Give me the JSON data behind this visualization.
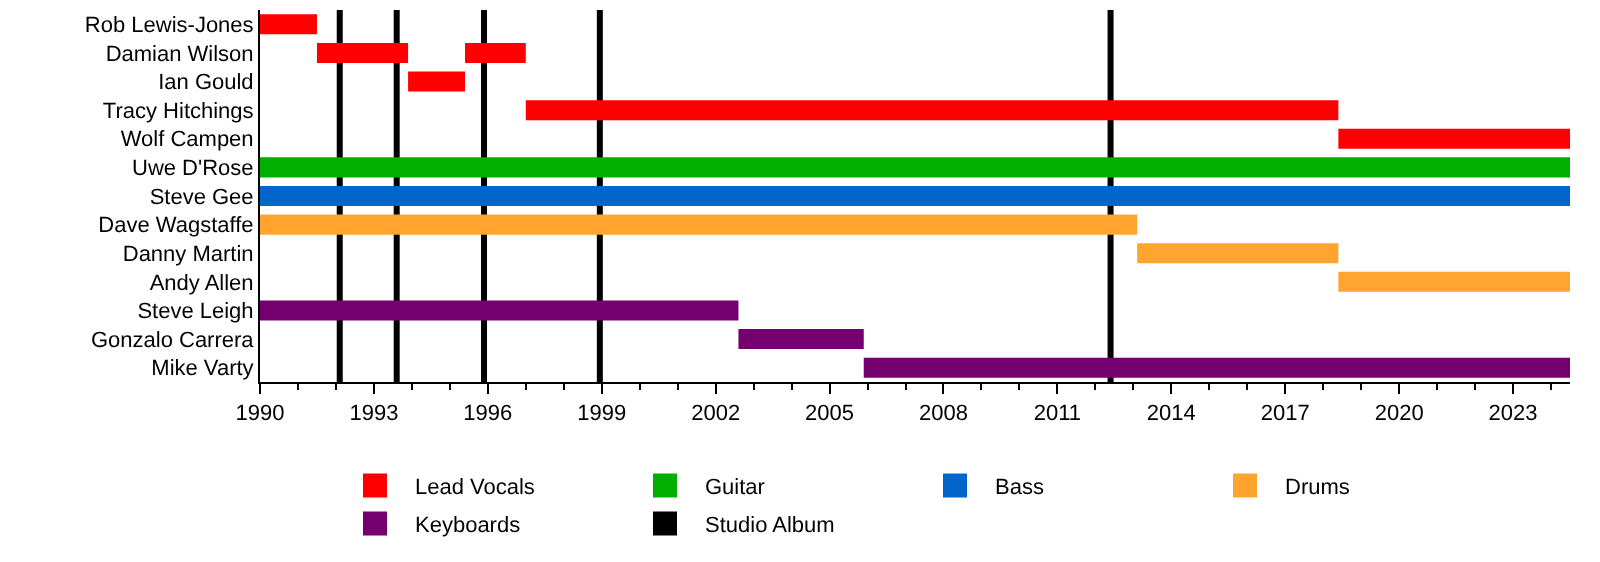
{
  "chart_data": {
    "type": "bar",
    "orientation": "horizontal",
    "categories": [
      "Rob Lewis-Jones",
      "Damian Wilson",
      "Ian Gould",
      "Tracy Hitchings",
      "Wolf Campen",
      "Uwe D'Rose",
      "Steve Gee",
      "Dave Wagstaffe",
      "Danny Martin",
      "Andy Allen",
      "Steve Leigh",
      "Gonzalo Carrera",
      "Mike Varty"
    ],
    "series": [
      {
        "name": "Lead Vocals",
        "color": "#ff0000",
        "base": [
          1990,
          1991.5,
          1993.9,
          1997,
          2018.4,
          null,
          null,
          null,
          null,
          null,
          null,
          null,
          null
        ],
        "values": [
          1.5,
          2.4,
          1.5,
          21.4,
          6.1,
          null,
          null,
          null,
          null,
          null,
          null,
          null,
          null
        ]
      },
      {
        "color": "#ff0000",
        "base": [
          null,
          1995.4,
          null,
          null,
          null,
          null,
          null,
          null,
          null,
          null,
          null,
          null,
          null
        ],
        "values": [
          null,
          1.6,
          null,
          null,
          null,
          null,
          null,
          null,
          null,
          null,
          null,
          null,
          null
        ]
      },
      {
        "name": "Guitar",
        "color": "#00b000",
        "base": [
          null,
          null,
          null,
          null,
          null,
          1990,
          null,
          null,
          null,
          null,
          null,
          null,
          null
        ],
        "values": [
          null,
          null,
          null,
          null,
          null,
          34.5,
          null,
          null,
          null,
          null,
          null,
          null,
          null
        ]
      },
      {
        "name": "Bass",
        "color": "#0066cc",
        "base": [
          null,
          null,
          null,
          null,
          null,
          null,
          1990,
          null,
          null,
          null,
          null,
          null,
          null
        ],
        "values": [
          null,
          null,
          null,
          null,
          null,
          null,
          34.5,
          null,
          null,
          null,
          null,
          null,
          null
        ]
      },
      {
        "name": "Drums",
        "color": "#ffa52f",
        "base": [
          null,
          null,
          null,
          null,
          null,
          null,
          null,
          1990,
          2013.1,
          2018.4,
          null,
          null,
          null
        ],
        "values": [
          null,
          null,
          null,
          null,
          null,
          null,
          null,
          23.1,
          5.3,
          6.1,
          null,
          null,
          null
        ]
      },
      {
        "name": "Keyboards",
        "color": "#74006f",
        "base": [
          null,
          null,
          null,
          null,
          null,
          null,
          null,
          null,
          null,
          null,
          1990,
          2002.6,
          2005.9
        ],
        "values": [
          null,
          null,
          null,
          null,
          null,
          null,
          null,
          null,
          null,
          null,
          12.6,
          3.3,
          18.6
        ]
      }
    ],
    "ref_lines": [
      {
        "axis": "x",
        "value": 1992.1,
        "label": "Studio Album",
        "color": "#000000"
      },
      {
        "axis": "x",
        "value": 1993.6,
        "color": "#000000"
      },
      {
        "axis": "x",
        "value": 1995.9,
        "color": "#000000"
      },
      {
        "axis": "x",
        "value": 1998.95,
        "color": "#000000"
      },
      {
        "axis": "x",
        "value": 2012.4,
        "color": "#000000"
      }
    ],
    "xlim": [
      1990,
      2024.5
    ],
    "xticks": [
      1990,
      1993,
      1996,
      1999,
      2002,
      2005,
      2008,
      2011,
      2014,
      2017,
      2020,
      2023
    ],
    "grid": false,
    "legend": "bottom"
  }
}
